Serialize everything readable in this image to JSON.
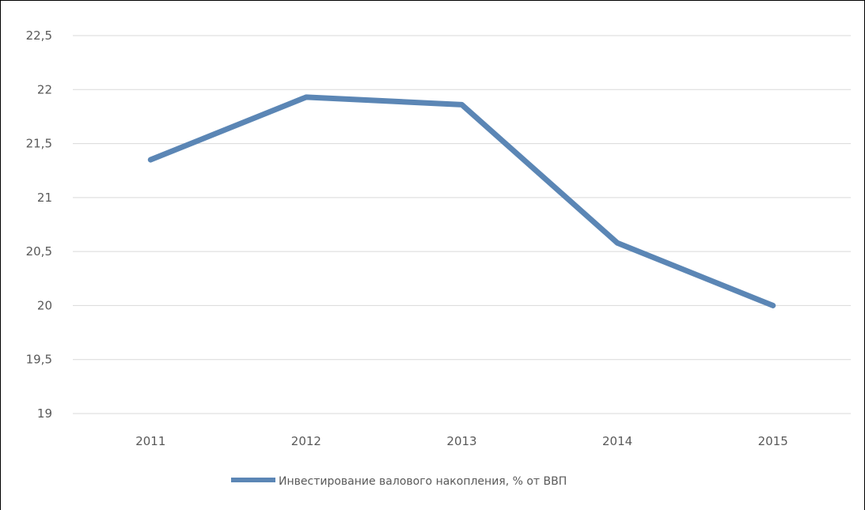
{
  "chart_data": {
    "type": "line",
    "title": "",
    "xlabel": "",
    "ylabel": "",
    "categories": [
      "2011",
      "2012",
      "2013",
      "2014",
      "2015"
    ],
    "y_ticks": [
      "19",
      "19,5",
      "20",
      "20,5",
      "21",
      "21,5",
      "22",
      "22,5"
    ],
    "ylim": [
      19,
      22.5
    ],
    "grid": true,
    "legend_position": "bottom",
    "series": [
      {
        "name": "Инвестирование валового накопления, % от ВВП",
        "values": [
          21.35,
          21.93,
          21.86,
          20.58,
          20.0
        ],
        "color": "#5b86b5"
      }
    ]
  }
}
